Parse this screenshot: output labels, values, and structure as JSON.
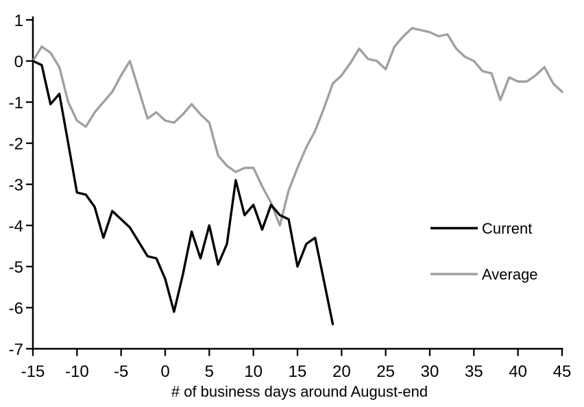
{
  "page": {
    "background_color": "#ffffff",
    "plot": {
      "axis_color": "#000000",
      "current_color": "#000000",
      "average_color": "#a0a0a0"
    }
  },
  "chart_data": {
    "type": "line",
    "title": "",
    "xlabel": "# of business days around August-end",
    "ylabel": "",
    "xlim": [
      -15,
      45
    ],
    "ylim": [
      -7,
      1
    ],
    "x_ticks": [
      -15,
      -10,
      -5,
      0,
      5,
      10,
      15,
      20,
      25,
      30,
      35,
      40,
      45
    ],
    "y_ticks": [
      1,
      0,
      -1,
      -2,
      -3,
      -4,
      -5,
      -6,
      -7
    ],
    "grid": false,
    "legend_position": "middle-right",
    "series": [
      {
        "name": "Current",
        "color": "#000000",
        "x": [
          -15,
          -14,
          -13,
          -12,
          -11,
          -10,
          -9,
          -8,
          -7,
          -6,
          -5,
          -4,
          -3,
          -2,
          -1,
          0,
          1,
          2,
          3,
          4,
          5,
          6,
          7,
          8,
          9,
          10,
          11,
          12,
          13,
          14,
          15,
          16,
          17,
          18,
          19
        ],
        "values": [
          0,
          -0.1,
          -1.05,
          -0.8,
          -2.0,
          -3.2,
          -3.25,
          -3.55,
          -4.3,
          -3.65,
          -3.85,
          -4.05,
          -4.4,
          -4.75,
          -4.8,
          -5.3,
          -6.1,
          -5.2,
          -4.15,
          -4.8,
          -4.0,
          -4.95,
          -4.45,
          -2.9,
          -3.75,
          -3.5,
          -4.1,
          -3.5,
          -3.75,
          -3.85,
          -5.0,
          -4.45,
          -4.3,
          -5.35,
          -6.4
        ]
      },
      {
        "name": "Average",
        "color": "#a0a0a0",
        "x": [
          -15,
          -14,
          -13,
          -12,
          -11,
          -10,
          -9,
          -8,
          -7,
          -6,
          -5,
          -4,
          -3,
          -2,
          -1,
          0,
          1,
          2,
          3,
          4,
          5,
          6,
          7,
          8,
          9,
          10,
          11,
          12,
          13,
          14,
          15,
          16,
          17,
          18,
          19,
          20,
          21,
          22,
          23,
          24,
          25,
          26,
          27,
          28,
          29,
          30,
          31,
          32,
          33,
          34,
          35,
          36,
          37,
          38,
          39,
          40,
          41,
          42,
          43,
          44,
          45
        ],
        "values": [
          0,
          0.35,
          0.2,
          -0.15,
          -1.0,
          -1.45,
          -1.6,
          -1.25,
          -1.0,
          -0.75,
          -0.35,
          0.0,
          -0.7,
          -1.4,
          -1.25,
          -1.45,
          -1.5,
          -1.3,
          -1.05,
          -1.3,
          -1.5,
          -2.3,
          -2.55,
          -2.7,
          -2.6,
          -2.6,
          -3.05,
          -3.45,
          -4.0,
          -3.15,
          -2.6,
          -2.1,
          -1.7,
          -1.15,
          -0.55,
          -0.35,
          -0.05,
          0.3,
          0.05,
          0.0,
          -0.2,
          0.35,
          0.6,
          0.8,
          0.75,
          0.7,
          0.6,
          0.65,
          0.3,
          0.1,
          0.0,
          -0.25,
          -0.3,
          -0.95,
          -0.4,
          -0.5,
          -0.5,
          -0.35,
          -0.15,
          -0.55,
          -0.75
        ]
      }
    ]
  },
  "legend": {
    "items": [
      {
        "label": "Current",
        "color": "#000000"
      },
      {
        "label": "Average",
        "color": "#a0a0a0"
      }
    ]
  }
}
